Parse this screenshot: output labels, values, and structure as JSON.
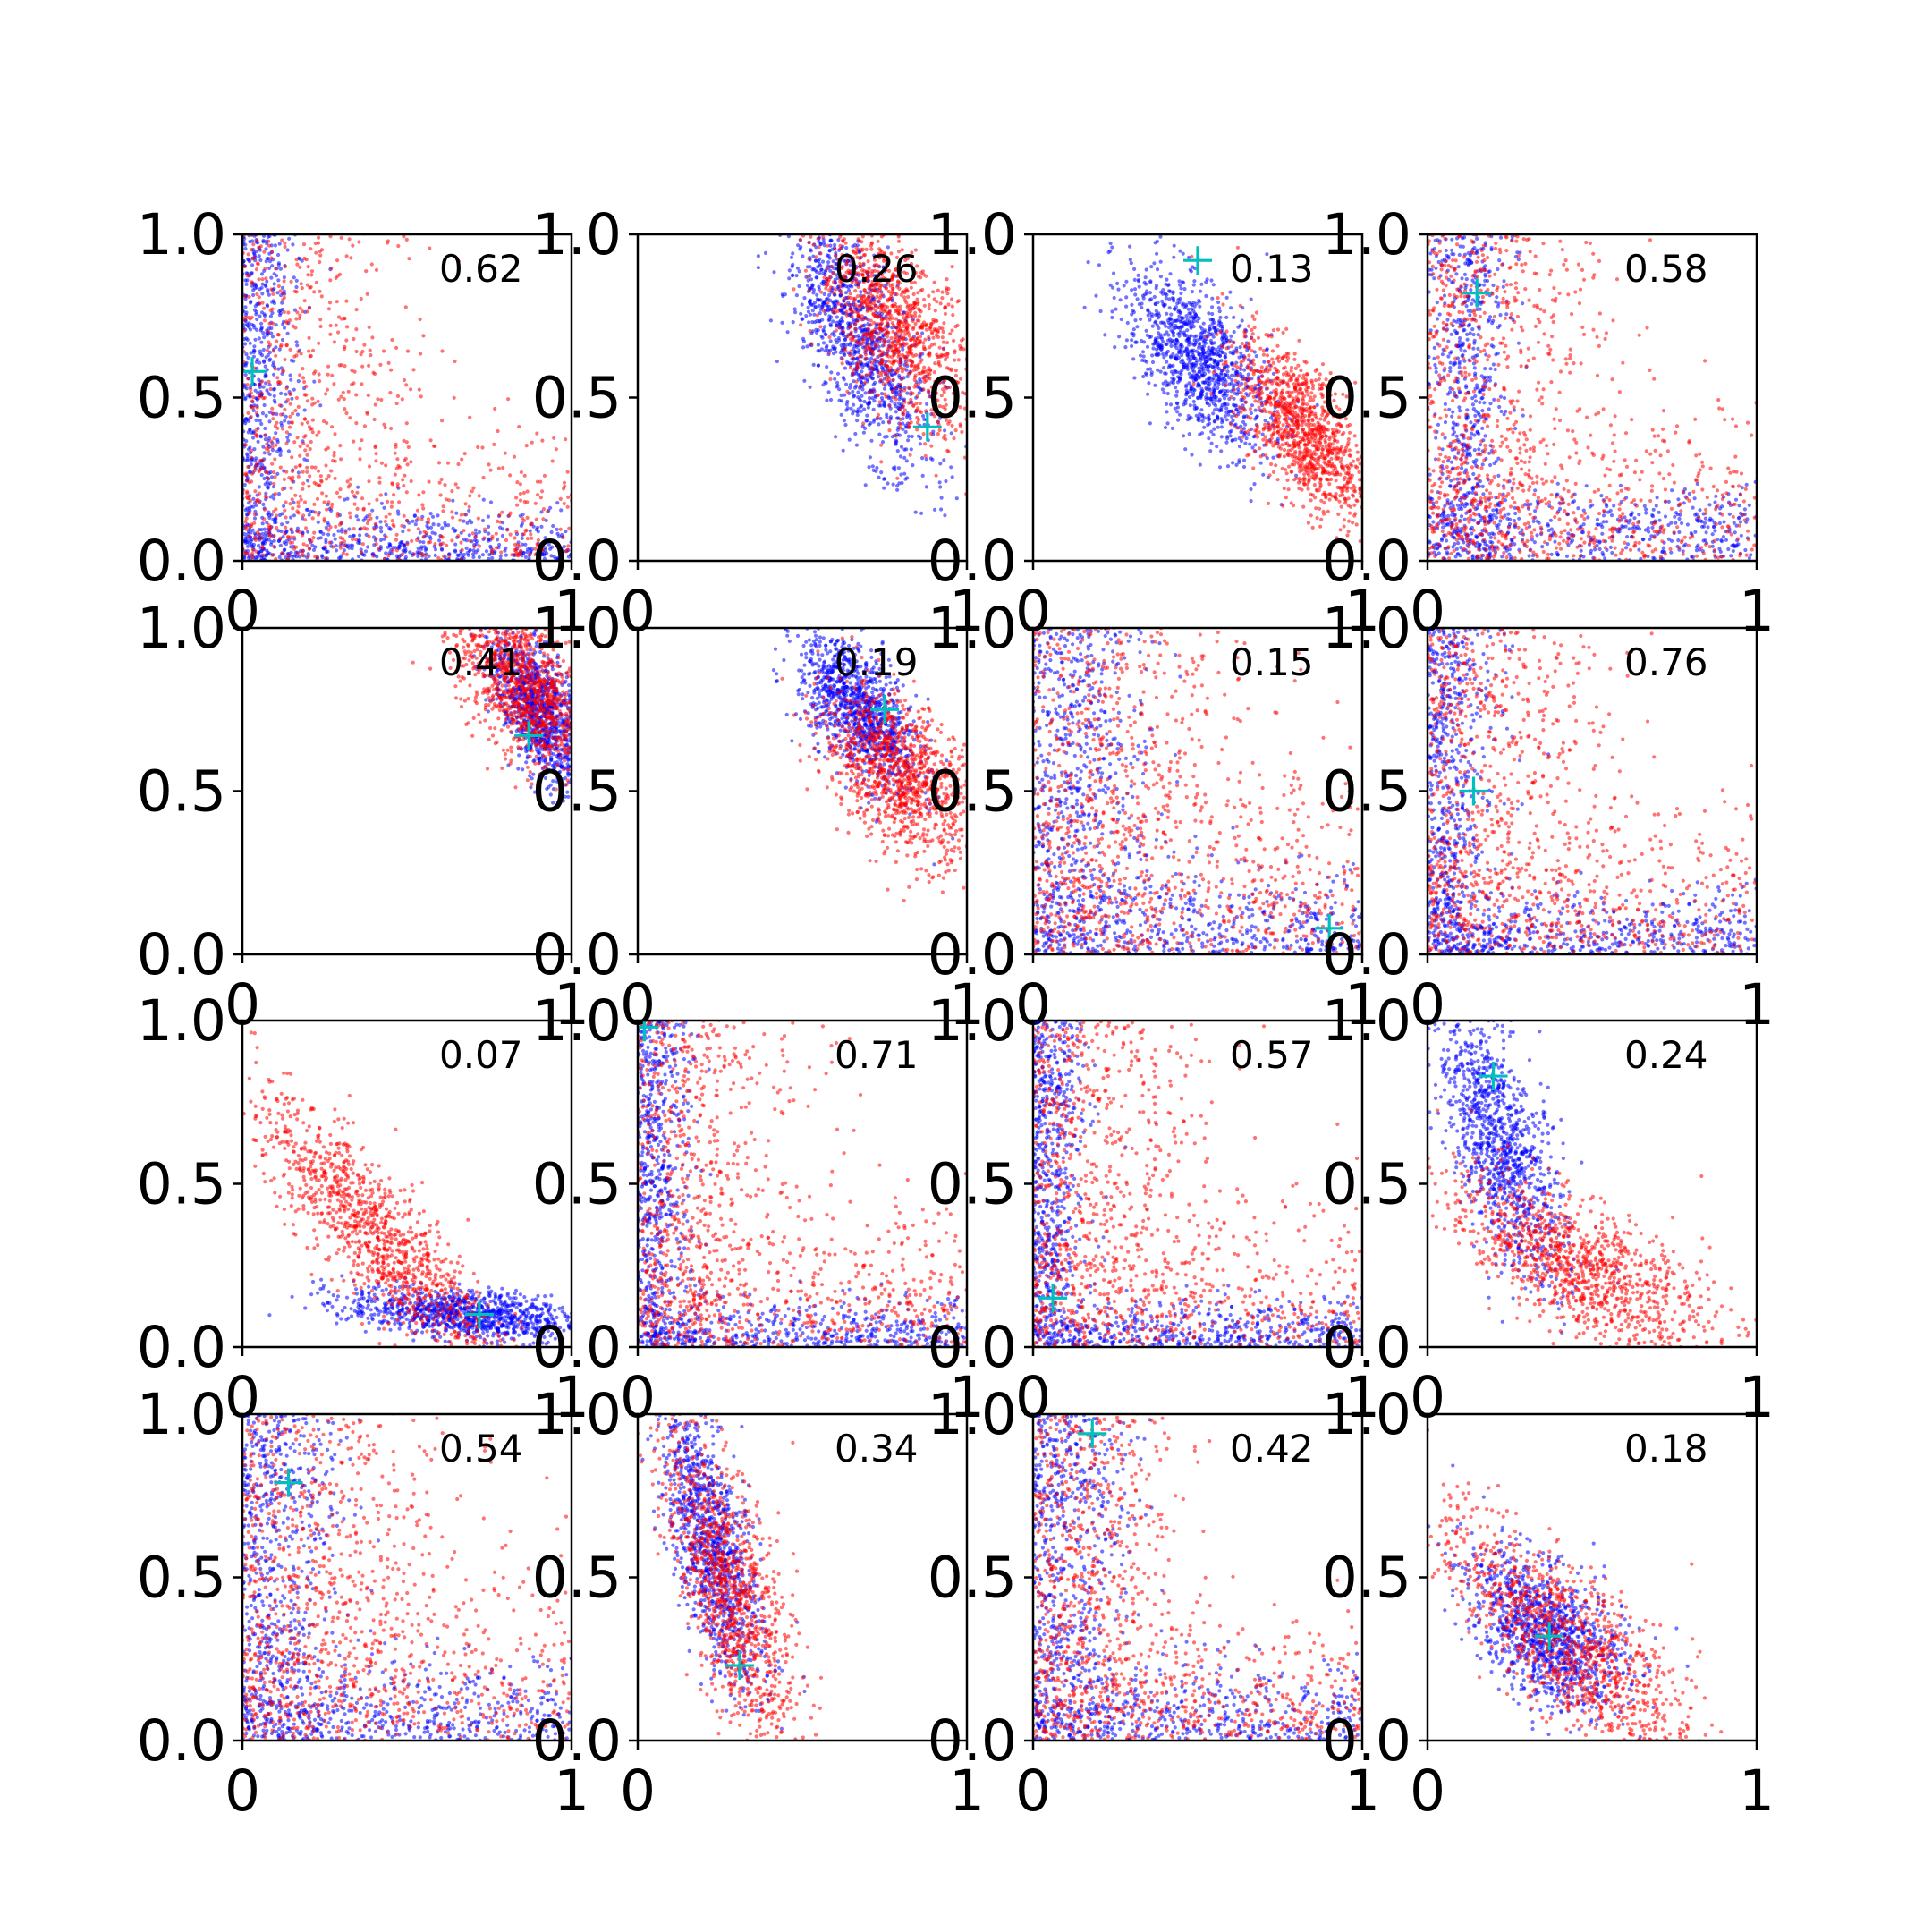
{
  "chart_data": {
    "type": "scatter",
    "grid": false,
    "xlim": [
      0,
      1
    ],
    "ylim": [
      0,
      1
    ],
    "x_tick_labels": [
      "0",
      "1"
    ],
    "y_tick_labels": [
      "0.0",
      "0.5",
      "1.0"
    ],
    "series_colors": {
      "blue": "#0000ff",
      "red": "#ff0000",
      "marker": "#00bfbf"
    },
    "panels": [
      {
        "label": "0.62",
        "marker": [
          0.03,
          0.58
        ],
        "blue": {
          "shape": "L",
          "cx": 0.03,
          "cy": 0.03,
          "sx": 0.14,
          "sy": 0.14,
          "decay": 0.07,
          "n": 1100
        },
        "red": {
          "shape": "L",
          "cx": 0.15,
          "cy": 0.08,
          "sx": 0.22,
          "sy": 0.22,
          "decay": 0.2,
          "n": 900
        }
      },
      {
        "label": "0.26",
        "marker": [
          0.88,
          0.41
        ],
        "blue": {
          "shape": "diag",
          "cx": 0.67,
          "cy": 0.68,
          "sx": 0.11,
          "sy": 0.2,
          "rho": -0.7,
          "n": 1100
        },
        "red": {
          "shape": "diag",
          "cx": 0.78,
          "cy": 0.72,
          "sx": 0.12,
          "sy": 0.17,
          "rho": -0.6,
          "n": 1100
        }
      },
      {
        "label": "0.13",
        "marker": [
          0.5,
          0.92
        ],
        "blue": {
          "shape": "diag",
          "cx": 0.5,
          "cy": 0.62,
          "sx": 0.11,
          "sy": 0.14,
          "rho": -0.6,
          "n": 1100
        },
        "red": {
          "shape": "diag",
          "cx": 0.82,
          "cy": 0.4,
          "sx": 0.1,
          "sy": 0.14,
          "rho": -0.65,
          "n": 1100
        }
      },
      {
        "label": "0.58",
        "marker": [
          0.15,
          0.82
        ],
        "blue": {
          "shape": "L",
          "cx": 0.12,
          "cy": 0.1,
          "sx": 0.09,
          "sy": 0.45,
          "decay": 0.06,
          "n": 1100
        },
        "red": {
          "shape": "L",
          "cx": 0.15,
          "cy": 0.08,
          "sx": 0.1,
          "sy": 0.45,
          "decay": 0.2,
          "n": 1100
        }
      },
      {
        "label": "0.41",
        "marker": [
          0.87,
          0.67
        ],
        "blue": {
          "shape": "diag",
          "cx": 0.9,
          "cy": 0.75,
          "sx": 0.07,
          "sy": 0.12,
          "rho": -0.6,
          "n": 1100
        },
        "red": {
          "shape": "diag",
          "cx": 0.85,
          "cy": 0.82,
          "sx": 0.1,
          "sy": 0.13,
          "rho": -0.55,
          "n": 1100
        }
      },
      {
        "label": "0.19",
        "marker": [
          0.75,
          0.75
        ],
        "blue": {
          "shape": "diag",
          "cx": 0.67,
          "cy": 0.75,
          "sx": 0.09,
          "sy": 0.12,
          "rho": -0.6,
          "n": 1100
        },
        "red": {
          "shape": "diag",
          "cx": 0.8,
          "cy": 0.55,
          "sx": 0.12,
          "sy": 0.13,
          "rho": -0.5,
          "n": 1100
        }
      },
      {
        "label": "0.15",
        "marker": [
          0.9,
          0.08
        ],
        "blue": {
          "shape": "L",
          "cx": 0.12,
          "cy": 0.05,
          "sx": 0.35,
          "sy": 0.25,
          "decay": 0.12,
          "n": 1100
        },
        "red": {
          "shape": "L",
          "cx": 0.2,
          "cy": 0.12,
          "sx": 0.25,
          "sy": 0.3,
          "decay": 0.25,
          "n": 1100
        }
      },
      {
        "label": "0.76",
        "marker": [
          0.14,
          0.5
        ],
        "blue": {
          "shape": "L",
          "cx": 0.05,
          "cy": 0.04,
          "sx": 0.25,
          "sy": 0.3,
          "decay": 0.08,
          "n": 1100
        },
        "red": {
          "shape": "L",
          "cx": 0.1,
          "cy": 0.08,
          "sx": 0.3,
          "sy": 0.35,
          "decay": 0.22,
          "n": 1100
        }
      },
      {
        "label": "0.07",
        "marker": [
          0.72,
          0.1
        ],
        "blue": {
          "shape": "diag",
          "cx": 0.68,
          "cy": 0.1,
          "sx": 0.18,
          "sy": 0.04,
          "rho": -0.4,
          "n": 1000
        },
        "red": {
          "shape": "curve",
          "cx": 0.4,
          "cy": 0.35,
          "sx": 0.18,
          "sy": 0.2,
          "rho": -0.85,
          "n": 1100
        }
      },
      {
        "label": "0.71",
        "marker": [
          0.02,
          0.98
        ],
        "blue": {
          "shape": "L",
          "cx": 0.03,
          "cy": 0.02,
          "sx": 0.3,
          "sy": 0.3,
          "decay": 0.07,
          "n": 1100
        },
        "red": {
          "shape": "L",
          "cx": 0.1,
          "cy": 0.06,
          "sx": 0.2,
          "sy": 0.35,
          "decay": 0.2,
          "n": 1100
        }
      },
      {
        "label": "0.57",
        "marker": [
          0.06,
          0.15
        ],
        "blue": {
          "shape": "L",
          "cx": 0.04,
          "cy": 0.03,
          "sx": 0.2,
          "sy": 0.35,
          "decay": 0.06,
          "n": 1100
        },
        "red": {
          "shape": "L",
          "cx": 0.12,
          "cy": 0.08,
          "sx": 0.25,
          "sy": 0.35,
          "decay": 0.22,
          "n": 1100
        }
      },
      {
        "label": "0.24",
        "marker": [
          0.2,
          0.83
        ],
        "blue": {
          "shape": "curve",
          "cx": 0.22,
          "cy": 0.62,
          "sx": 0.1,
          "sy": 0.22,
          "rho": -0.7,
          "n": 1100
        },
        "red": {
          "shape": "curve",
          "cx": 0.45,
          "cy": 0.25,
          "sx": 0.2,
          "sy": 0.14,
          "rho": -0.7,
          "n": 1100
        }
      },
      {
        "label": "0.54",
        "marker": [
          0.14,
          0.79
        ],
        "blue": {
          "shape": "L",
          "cx": 0.1,
          "cy": 0.05,
          "sx": 0.3,
          "sy": 0.35,
          "decay": 0.1,
          "n": 1100
        },
        "red": {
          "shape": "L",
          "cx": 0.18,
          "cy": 0.12,
          "sx": 0.3,
          "sy": 0.3,
          "decay": 0.25,
          "n": 1100
        }
      },
      {
        "label": "0.34",
        "marker": [
          0.31,
          0.23
        ],
        "blue": {
          "shape": "curve",
          "cx": 0.22,
          "cy": 0.6,
          "sx": 0.08,
          "sy": 0.23,
          "rho": -0.7,
          "n": 1100
        },
        "red": {
          "shape": "curve",
          "cx": 0.28,
          "cy": 0.45,
          "sx": 0.1,
          "sy": 0.25,
          "rho": -0.7,
          "n": 1100
        }
      },
      {
        "label": "0.42",
        "marker": [
          0.18,
          0.94
        ],
        "blue": {
          "shape": "L",
          "cx": 0.1,
          "cy": 0.04,
          "sx": 0.35,
          "sy": 0.3,
          "decay": 0.1,
          "n": 1100
        },
        "red": {
          "shape": "L",
          "cx": 0.15,
          "cy": 0.08,
          "sx": 0.3,
          "sy": 0.3,
          "decay": 0.15,
          "n": 1100
        }
      },
      {
        "label": "0.18",
        "marker": [
          0.37,
          0.32
        ],
        "blue": {
          "shape": "curve",
          "cx": 0.36,
          "cy": 0.32,
          "sx": 0.12,
          "sy": 0.12,
          "rho": -0.5,
          "n": 1100
        },
        "red": {
          "shape": "curve",
          "cx": 0.42,
          "cy": 0.3,
          "sx": 0.2,
          "sy": 0.2,
          "rho": -0.8,
          "n": 1100
        }
      }
    ]
  }
}
